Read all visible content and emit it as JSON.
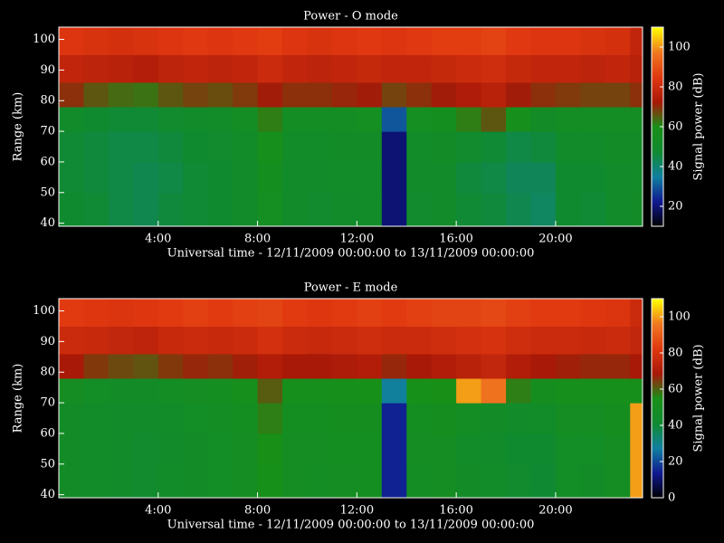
{
  "chart_data": [
    {
      "type": "heatmap",
      "title": "Power - O mode",
      "xlabel": "Universal time - 12/11/2009 00:00:00 to 13/11/2009 00:00:00",
      "ylabel": "Range (km)",
      "colorbar_label": "Signal power (dB)",
      "xlim": [
        0,
        23.5
      ],
      "ylim": [
        39,
        104
      ],
      "xticks": [
        {
          "value": 4,
          "label": "4:00"
        },
        {
          "value": 8,
          "label": "8:00"
        },
        {
          "value": 12,
          "label": "12:00"
        },
        {
          "value": 16,
          "label": "16:00"
        },
        {
          "value": 20,
          "label": "20:00"
        }
      ],
      "yticks": [
        40,
        50,
        60,
        70,
        80,
        90,
        100
      ],
      "zlim": [
        10,
        110
      ],
      "zticks": [
        20,
        40,
        60,
        80,
        100
      ],
      "colors": [
        "#000000",
        "#101890",
        "#1080a0",
        "#108a30",
        "#189018",
        "#a81808",
        "#e03810",
        "#f07820",
        "#ffff00"
      ],
      "xbins": [
        0,
        1,
        2,
        3,
        4,
        5,
        6,
        7,
        8,
        9,
        10,
        11,
        12,
        13,
        14,
        15,
        16,
        17,
        18,
        19,
        20,
        21,
        22,
        23,
        23.5
      ],
      "ybins": [
        39,
        50,
        60,
        70,
        78,
        86,
        95,
        104
      ],
      "z": [
        [
          48,
          47,
          45,
          44,
          46,
          47,
          48,
          50,
          55,
          50,
          49,
          50,
          51,
          20,
          49,
          50,
          47,
          46,
          44,
          42,
          48,
          47,
          50,
          52
        ],
        [
          47,
          46,
          45,
          44,
          45,
          47,
          48,
          50,
          56,
          50,
          50,
          51,
          51,
          20,
          50,
          50,
          46,
          45,
          43,
          43,
          48,
          48,
          50,
          51
        ],
        [
          47,
          46,
          45,
          45,
          46,
          48,
          49,
          51,
          58,
          51,
          51,
          52,
          52,
          20,
          51,
          52,
          49,
          47,
          45,
          46,
          50,
          50,
          52,
          52
        ],
        [
          50,
          48,
          47,
          47,
          49,
          50,
          51,
          53,
          62,
          53,
          53,
          54,
          55,
          30,
          55,
          56,
          62,
          66,
          58,
          52,
          53,
          53,
          54,
          54
        ],
        [
          70,
          66,
          64,
          63,
          66,
          68,
          67,
          69,
          72,
          70,
          70,
          71,
          72,
          68,
          70,
          72,
          74,
          76,
          72,
          70,
          69,
          68,
          68,
          70
        ],
        [
          78,
          77,
          76,
          75,
          77,
          78,
          77,
          78,
          80,
          78,
          77,
          78,
          79,
          78,
          78,
          79,
          80,
          81,
          79,
          78,
          78,
          77,
          78,
          76
        ],
        [
          84,
          83,
          82,
          83,
          84,
          85,
          84,
          85,
          86,
          84,
          83,
          84,
          85,
          84,
          85,
          86,
          86,
          87,
          85,
          84,
          84,
          83,
          82,
          78
        ]
      ]
    },
    {
      "type": "heatmap",
      "title": "Power - E mode",
      "xlabel": "Universal time - 12/11/2009 00:00:00 to 13/11/2009 00:00:00",
      "ylabel": "Range (km)",
      "colorbar_label": "Signal power (dB)",
      "xlim": [
        0,
        23.5
      ],
      "ylim": [
        39,
        104
      ],
      "xticks": [
        {
          "value": 4,
          "label": "4:00"
        },
        {
          "value": 8,
          "label": "8:00"
        },
        {
          "value": 12,
          "label": "12:00"
        },
        {
          "value": 16,
          "label": "16:00"
        },
        {
          "value": 20,
          "label": "20:00"
        }
      ],
      "yticks": [
        40,
        50,
        60,
        70,
        80,
        90,
        100
      ],
      "zlim": [
        0,
        110
      ],
      "zticks": [
        0,
        20,
        40,
        60,
        80,
        100
      ],
      "colors": [
        "#000000",
        "#101890",
        "#1080a0",
        "#108a30",
        "#189018",
        "#a81808",
        "#e03810",
        "#f07820",
        "#ffff00"
      ],
      "xbins": [
        0,
        1,
        2,
        3,
        4,
        5,
        6,
        7,
        8,
        9,
        10,
        11,
        12,
        13,
        14,
        15,
        16,
        17,
        18,
        19,
        20,
        21,
        22,
        23,
        23.5
      ],
      "ybins": [
        39,
        50,
        60,
        70,
        78,
        86,
        95,
        104
      ],
      "z": [
        [
          46,
          45,
          44,
          43,
          45,
          46,
          47,
          49,
          54,
          49,
          48,
          49,
          50,
          15,
          48,
          49,
          46,
          45,
          43,
          41,
          47,
          46,
          49,
          100
        ],
        [
          46,
          45,
          44,
          43,
          44,
          46,
          47,
          49,
          55,
          49,
          49,
          50,
          50,
          15,
          49,
          49,
          45,
          44,
          42,
          42,
          47,
          47,
          49,
          100
        ],
        [
          46,
          45,
          44,
          44,
          45,
          47,
          48,
          50,
          57,
          50,
          50,
          51,
          51,
          15,
          50,
          51,
          48,
          46,
          44,
          45,
          49,
          49,
          51,
          100
        ],
        [
          49,
          47,
          46,
          46,
          48,
          49,
          50,
          52,
          61,
          52,
          52,
          53,
          54,
          28,
          54,
          55,
          100,
          95,
          57,
          51,
          52,
          52,
          53,
          53
        ],
        [
          69,
          65,
          63,
          62,
          65,
          67,
          66,
          68,
          71,
          69,
          69,
          70,
          71,
          67,
          69,
          71,
          73,
          75,
          71,
          69,
          68,
          67,
          67,
          69
        ],
        [
          77,
          76,
          75,
          74,
          76,
          77,
          76,
          77,
          79,
          77,
          76,
          77,
          78,
          77,
          77,
          78,
          79,
          80,
          78,
          77,
          77,
          76,
          77,
          75
        ],
        [
          83,
          82,
          81,
          82,
          83,
          84,
          83,
          84,
          85,
          83,
          82,
          83,
          84,
          83,
          84,
          85,
          85,
          86,
          84,
          83,
          83,
          82,
          81,
          77
        ]
      ]
    }
  ]
}
